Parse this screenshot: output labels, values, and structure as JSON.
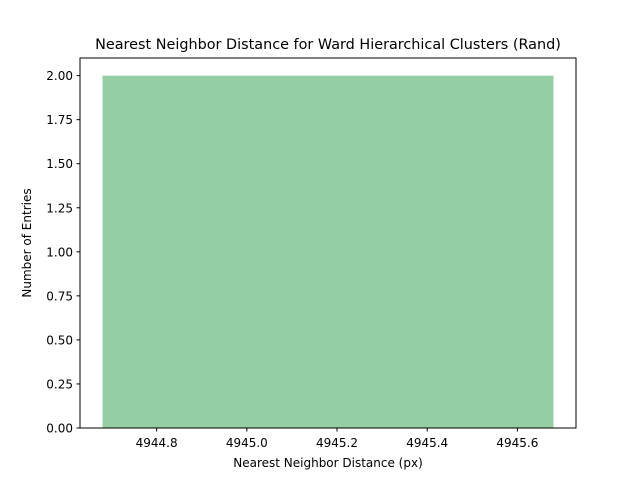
{
  "chart_data": {
    "type": "bar",
    "title": "Nearest Neighbor Distance for Ward Hierarchical Clusters (Rand)",
    "xlabel": "Nearest Neighbor Distance (px)",
    "ylabel": "Number of Entries",
    "bars": [
      {
        "x_start": 4944.68,
        "x_end": 4945.68,
        "value": 2
      }
    ],
    "xlim": [
      4944.63,
      4945.73
    ],
    "ylim": [
      0,
      2.1
    ],
    "xticks": [
      4944.8,
      4945.0,
      4945.2,
      4945.4,
      4945.6
    ],
    "xtick_labels": [
      "4944.8",
      "4945.0",
      "4945.2",
      "4945.4",
      "4945.6"
    ],
    "yticks": [
      0,
      0.25,
      0.5,
      0.75,
      1.0,
      1.25,
      1.5,
      1.75,
      2.0
    ],
    "ytick_labels": [
      "0.00",
      "0.25",
      "0.50",
      "0.75",
      "1.00",
      "1.25",
      "1.50",
      "1.75",
      "2.00"
    ],
    "grid": false,
    "colors": {
      "bar": "#93cea5",
      "axis": "#000000"
    }
  }
}
